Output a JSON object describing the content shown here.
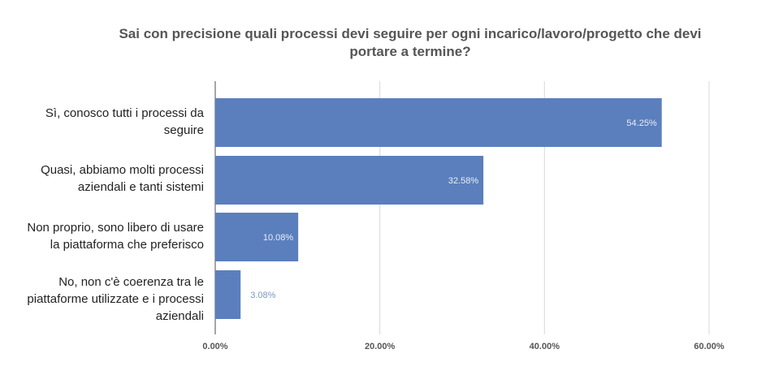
{
  "chart_data": {
    "type": "bar",
    "orientation": "horizontal",
    "title_lines": [
      "Sai con precisione quali processi devi seguire per ogni incarico/lavoro/progetto che devi",
      "portare a termine?"
    ],
    "categories": [
      [
        "Sì, conosco tutti i processi da",
        "seguire"
      ],
      [
        "Quasi, abbiamo molti processi",
        "aziendali e tanti sistemi"
      ],
      [
        "Non proprio, sono libero di usare",
        "la piattaforma che preferisco"
      ],
      [
        "No, non c'è coerenza tra le",
        "piattaforme utilizzate e i processi",
        "aziendali"
      ]
    ],
    "values": [
      54.25,
      32.58,
      10.08,
      3.08
    ],
    "data_labels": [
      "54.25%",
      "32.58%",
      "10.08%",
      "3.08%"
    ],
    "x_ticks": [
      0,
      20,
      40,
      60
    ],
    "x_tick_labels": [
      "0.00%",
      "20.00%",
      "40.00%",
      "60.00%"
    ],
    "xlim": [
      0,
      60
    ],
    "grid": true,
    "legend": "none",
    "colors": {
      "bar": "#5b7fbd",
      "grid": "#d9d9d9",
      "axis": "#888888",
      "label_inside": "#e8eef8",
      "label_outside": "#7a96c8"
    }
  }
}
